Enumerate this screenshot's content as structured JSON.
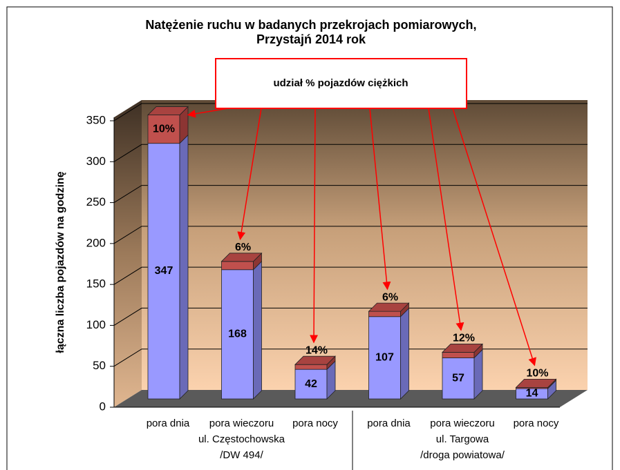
{
  "chart_data": {
    "type": "bar3d_stacked",
    "title": [
      "Natężenie ruchu w badanych przekrojach pomiarowych,",
      "Przystajń 2014 rok"
    ],
    "annotation": "udział % pojazdów ciężkich",
    "y_label": "łączna liczba pojazdów na godzinę",
    "categories": [
      "pora dnia",
      "pora wieczoru",
      "pora nocy",
      "pora dnia",
      "pora wieczoru",
      "pora nocy"
    ],
    "group_labels": [
      [
        "ul. Częstochowska",
        "/DW 494/"
      ],
      [
        "ul. Targowa",
        "/droga powiatowa/"
      ]
    ],
    "values": [
      347,
      168,
      42,
      107,
      57,
      14
    ],
    "heavy_share": {
      "values": [
        10,
        6,
        14,
        6,
        12,
        10
      ],
      "value_labels": [
        "10%",
        "6%",
        "14%",
        "6%",
        "12%",
        "10%"
      ]
    },
    "colors": {
      "light": "#9999ff",
      "light_side": "#6a6ab8",
      "light_top": "#c8c8ff",
      "heavy": "#c0504d",
      "heavy_side": "#8c3533",
      "heavy_top": "#a84340"
    },
    "ylim": [
      0,
      350
    ],
    "yticks": [
      0,
      50,
      100,
      150,
      200,
      250,
      300,
      350
    ],
    "grid": true
  }
}
